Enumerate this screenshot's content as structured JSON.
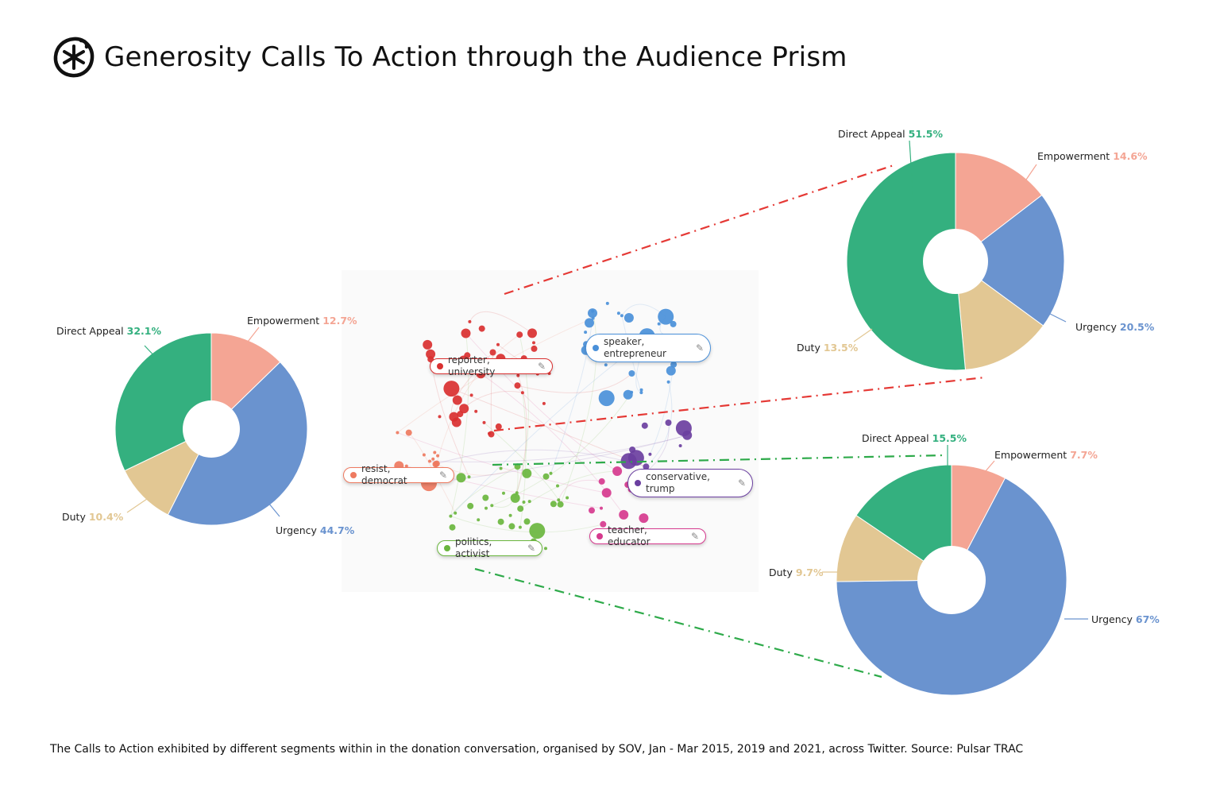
{
  "title": "Generosity Calls To Action through the Audience Prism",
  "footer": "The Calls to Action exhibited by different segments within in the donation conversation, organised by SOV, Jan - Mar 2015, 2019 and 2021, across Twitter. Source: Pulsar TRAC",
  "colors": {
    "Direct Appeal": "#34b07f",
    "Empowerment": "#f4a594",
    "Urgency": "#6a93cf",
    "Duty": "#e2c793",
    "red_link": "#e53935",
    "green_link": "#2eaa4a"
  },
  "chart_data": [
    {
      "type": "pie",
      "variant": "donut",
      "categories": [
        "Empowerment",
        "Urgency",
        "Duty",
        "Direct Appeal"
      ],
      "values": [
        12.7,
        44.7,
        10.4,
        32.1
      ],
      "labels": [
        "12.7%",
        "44.7%",
        "10.4%",
        "32.1%"
      ]
    },
    {
      "type": "pie",
      "variant": "donut",
      "categories": [
        "Empowerment",
        "Urgency",
        "Duty",
        "Direct Appeal"
      ],
      "values": [
        14.6,
        20.5,
        13.5,
        51.5
      ],
      "labels": [
        "14.6%",
        "20.5%",
        "13.5%",
        "51.5%"
      ],
      "linked_segment": "reporter, university"
    },
    {
      "type": "pie",
      "variant": "donut",
      "categories": [
        "Empowerment",
        "Urgency",
        "Duty",
        "Direct Appeal"
      ],
      "values": [
        7.7,
        67,
        9.7,
        15.5
      ],
      "labels": [
        "7.7%",
        "67%",
        "9.7%",
        "15.5%"
      ],
      "linked_segment": "politics, activist"
    }
  ],
  "network": {
    "segments": [
      {
        "label": "reporter, university",
        "color": "#d93030"
      },
      {
        "label": "speaker, entrepreneur",
        "color": "#4a90d9"
      },
      {
        "label": "resist, democrat",
        "color": "#ee7a60"
      },
      {
        "label": "conservative, trump",
        "color": "#6b3fa0"
      },
      {
        "label": "teacher, educator",
        "color": "#d63a8e"
      },
      {
        "label": "politics, activist",
        "color": "#6ab63e"
      }
    ],
    "edit_icon": "pencil-icon"
  }
}
